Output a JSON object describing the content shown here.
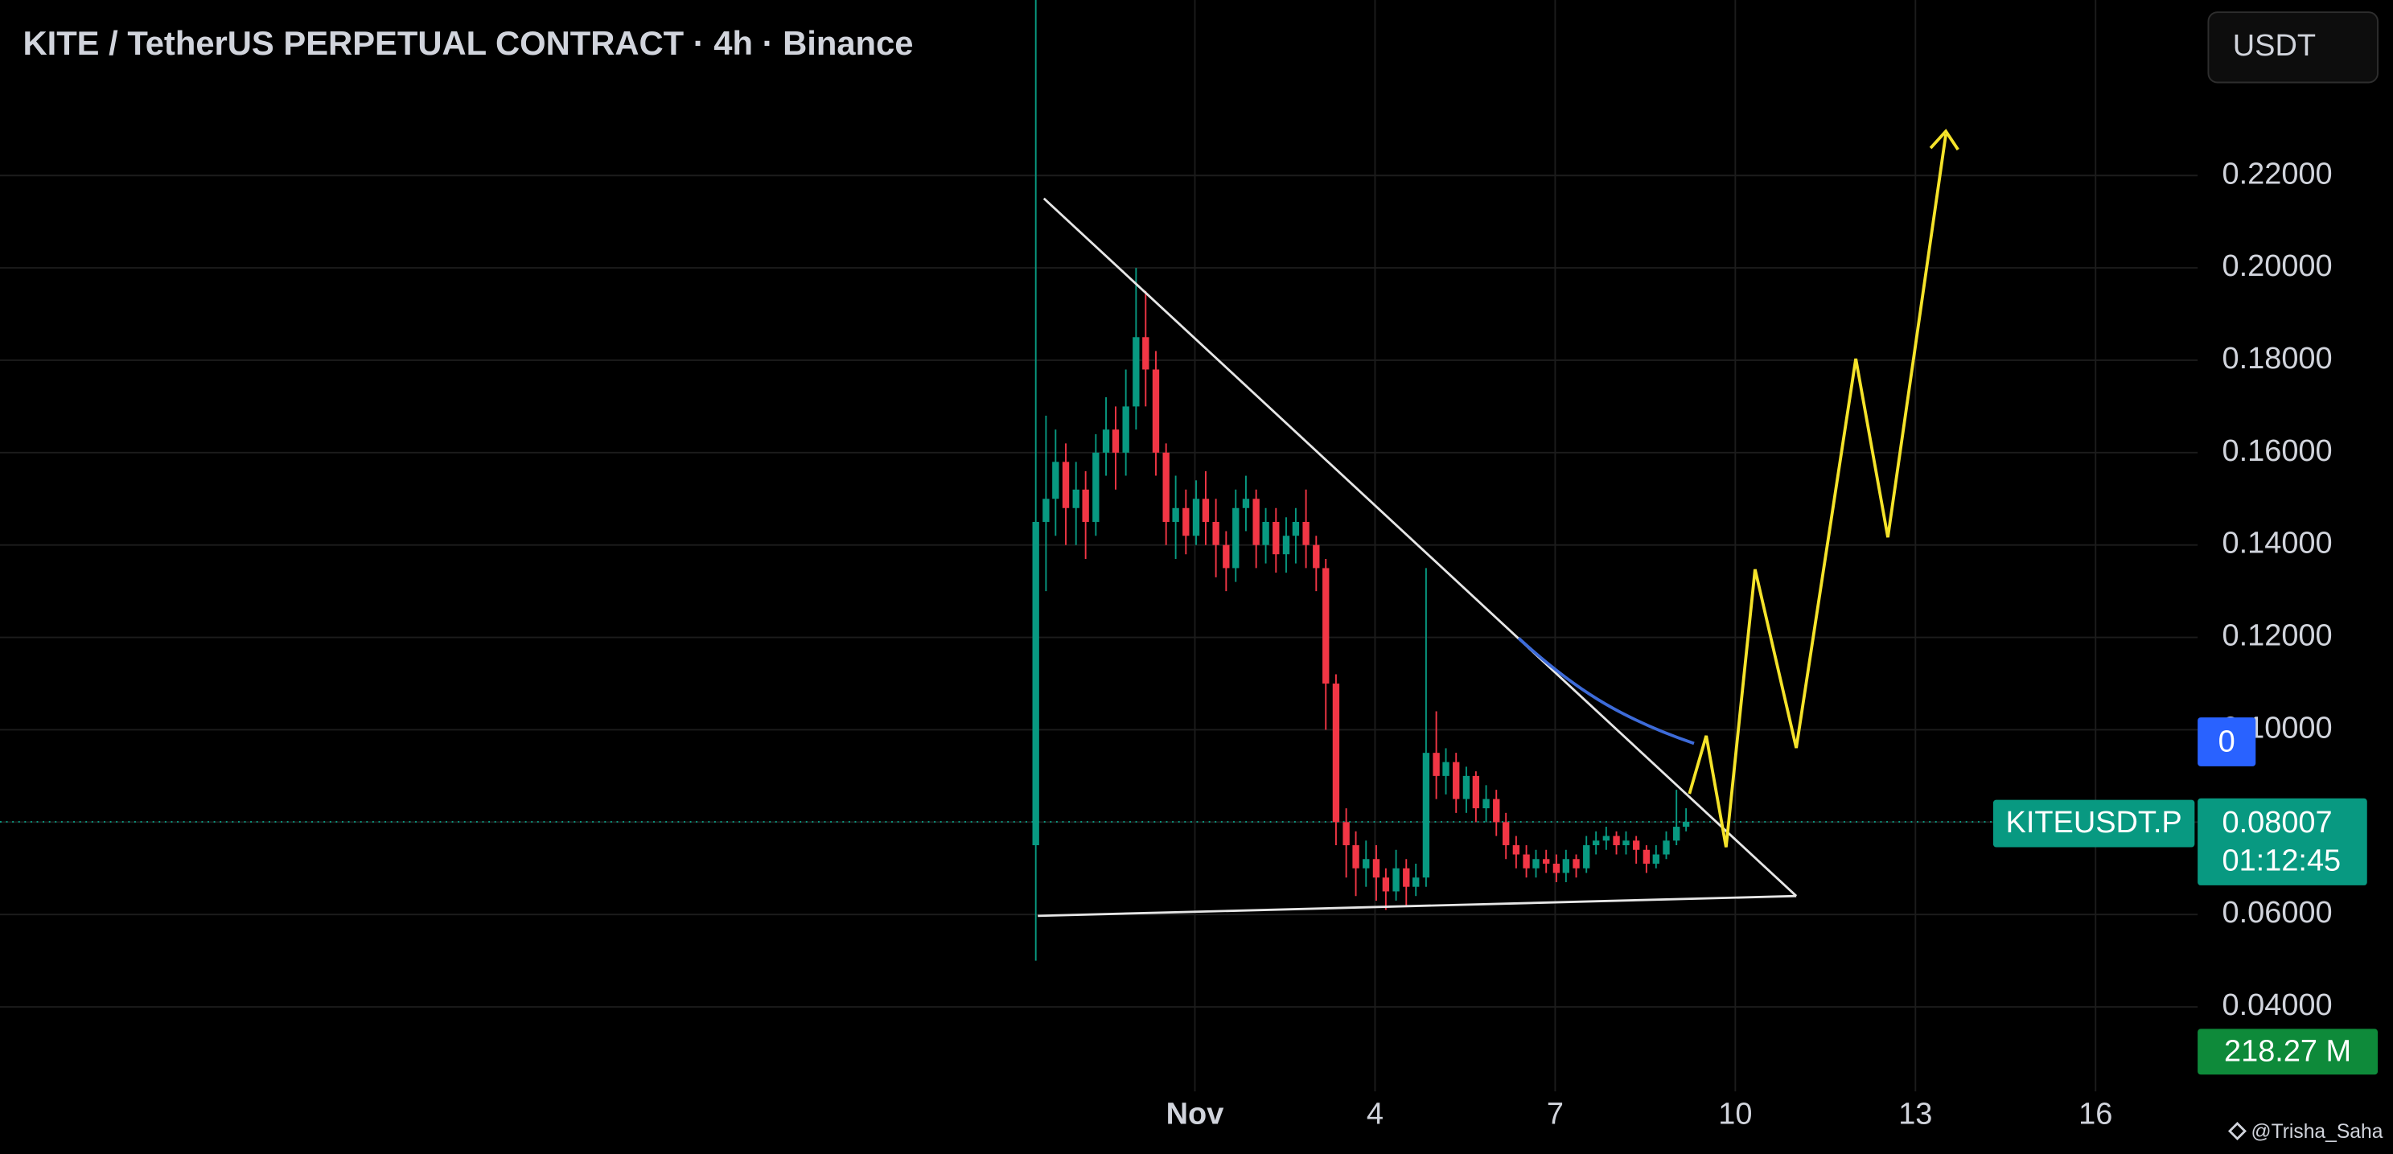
{
  "chart_data": {
    "type": "candlestick",
    "title": "KITE / TetherUS PERPETUAL CONTRACT · 4h · Binance",
    "currency_button": "USDT",
    "symbol_label": "KITEUSDT.P",
    "countdown": "01:12:45",
    "alert_badge": 0,
    "volume_label": "218.27 M",
    "watermark": "@Trisha_Saha",
    "up_color": "#089981",
    "down_color": "#f23645",
    "grid": true,
    "x": [
      -1.65,
      -1.48,
      -1.32,
      -1.15,
      -0.98,
      -0.82,
      -0.65,
      -0.48,
      -0.32,
      -0.15,
      0.02,
      0.18,
      0.35,
      0.52,
      0.68,
      0.85,
      1.02,
      1.18,
      1.35,
      1.52,
      1.68,
      1.85,
      2.02,
      2.18,
      2.35,
      2.52,
      2.68,
      2.85,
      3.02,
      3.18,
      3.35,
      3.52,
      3.68,
      3.85,
      4.02,
      4.18,
      4.35,
      4.52,
      4.68,
      4.85,
      5.02,
      5.18,
      5.35,
      5.52,
      5.68,
      5.85,
      6.02,
      6.18,
      6.35,
      6.52,
      6.68,
      6.85,
      7.02,
      7.18,
      7.35,
      7.52,
      7.68,
      7.85,
      8.02,
      8.18,
      8.35,
      8.52,
      8.68,
      8.85,
      9.02,
      9.18
    ],
    "open": [
      0.075,
      0.145,
      0.15,
      0.158,
      0.148,
      0.152,
      0.145,
      0.16,
      0.165,
      0.16,
      0.17,
      0.185,
      0.178,
      0.16,
      0.145,
      0.148,
      0.142,
      0.15,
      0.145,
      0.14,
      0.135,
      0.148,
      0.15,
      0.14,
      0.145,
      0.138,
      0.142,
      0.145,
      0.14,
      0.135,
      0.11,
      0.08,
      0.075,
      0.07,
      0.072,
      0.068,
      0.065,
      0.07,
      0.066,
      0.068,
      0.095,
      0.09,
      0.093,
      0.085,
      0.09,
      0.083,
      0.085,
      0.08,
      0.075,
      0.073,
      0.07,
      0.072,
      0.071,
      0.069,
      0.072,
      0.07,
      0.075,
      0.076,
      0.077,
      0.075,
      0.076,
      0.074,
      0.071,
      0.073,
      0.076,
      0.079
    ],
    "high": [
      0.258,
      0.168,
      0.165,
      0.162,
      0.158,
      0.156,
      0.164,
      0.172,
      0.17,
      0.178,
      0.2,
      0.195,
      0.182,
      0.162,
      0.155,
      0.152,
      0.154,
      0.156,
      0.15,
      0.143,
      0.152,
      0.155,
      0.152,
      0.148,
      0.148,
      0.146,
      0.148,
      0.152,
      0.142,
      0.137,
      0.112,
      0.083,
      0.078,
      0.076,
      0.075,
      0.07,
      0.074,
      0.072,
      0.071,
      0.135,
      0.104,
      0.096,
      0.095,
      0.092,
      0.091,
      0.088,
      0.087,
      0.082,
      0.077,
      0.075,
      0.074,
      0.074,
      0.073,
      0.074,
      0.073,
      0.077,
      0.078,
      0.079,
      0.078,
      0.078,
      0.077,
      0.075,
      0.075,
      0.078,
      0.087,
      0.083
    ],
    "low": [
      0.05,
      0.13,
      0.142,
      0.14,
      0.14,
      0.137,
      0.142,
      0.155,
      0.152,
      0.155,
      0.165,
      0.17,
      0.155,
      0.14,
      0.137,
      0.138,
      0.14,
      0.14,
      0.133,
      0.13,
      0.132,
      0.143,
      0.135,
      0.136,
      0.134,
      0.134,
      0.136,
      0.135,
      0.13,
      0.1,
      0.075,
      0.068,
      0.064,
      0.066,
      0.063,
      0.061,
      0.063,
      0.062,
      0.064,
      0.066,
      0.085,
      0.086,
      0.082,
      0.082,
      0.08,
      0.08,
      0.077,
      0.072,
      0.07,
      0.068,
      0.068,
      0.069,
      0.067,
      0.067,
      0.068,
      0.069,
      0.073,
      0.074,
      0.073,
      0.073,
      0.071,
      0.069,
      0.07,
      0.072,
      0.075,
      0.078
    ],
    "close": [
      0.145,
      0.15,
      0.158,
      0.148,
      0.152,
      0.145,
      0.16,
      0.165,
      0.16,
      0.17,
      0.185,
      0.178,
      0.16,
      0.145,
      0.148,
      0.142,
      0.15,
      0.145,
      0.14,
      0.135,
      0.148,
      0.15,
      0.14,
      0.145,
      0.138,
      0.142,
      0.145,
      0.14,
      0.135,
      0.11,
      0.08,
      0.075,
      0.07,
      0.072,
      0.068,
      0.065,
      0.07,
      0.066,
      0.068,
      0.095,
      0.09,
      0.093,
      0.085,
      0.09,
      0.083,
      0.085,
      0.08,
      0.075,
      0.073,
      0.07,
      0.072,
      0.071,
      0.069,
      0.072,
      0.07,
      0.075,
      0.076,
      0.077,
      0.075,
      0.076,
      0.074,
      0.071,
      0.073,
      0.076,
      0.079,
      0.08007
    ],
    "xlim": [
      -18.9,
      17.7
    ],
    "xticks": [
      {
        "value": 1,
        "label": "Nov"
      },
      4,
      7,
      10,
      13,
      16
    ],
    "ylim": [
      0.025,
      0.258
    ],
    "yticks": [
      {
        "value": 0.04,
        "label": "0.04000"
      },
      {
        "value": 0.06,
        "label": "0.06000"
      },
      {
        "value": 0.08,
        "label": "0.08000"
      },
      {
        "value": 0.1,
        "label": "0.10000"
      },
      {
        "value": 0.12,
        "label": "0.12000"
      },
      {
        "value": 0.14,
        "label": "0.14000"
      },
      {
        "value": 0.16,
        "label": "0.16000"
      },
      {
        "value": 0.18,
        "label": "0.18000"
      },
      {
        "value": 0.2,
        "label": "0.20000"
      },
      {
        "value": 0.22,
        "label": "0.22000"
      }
    ]
  }
}
